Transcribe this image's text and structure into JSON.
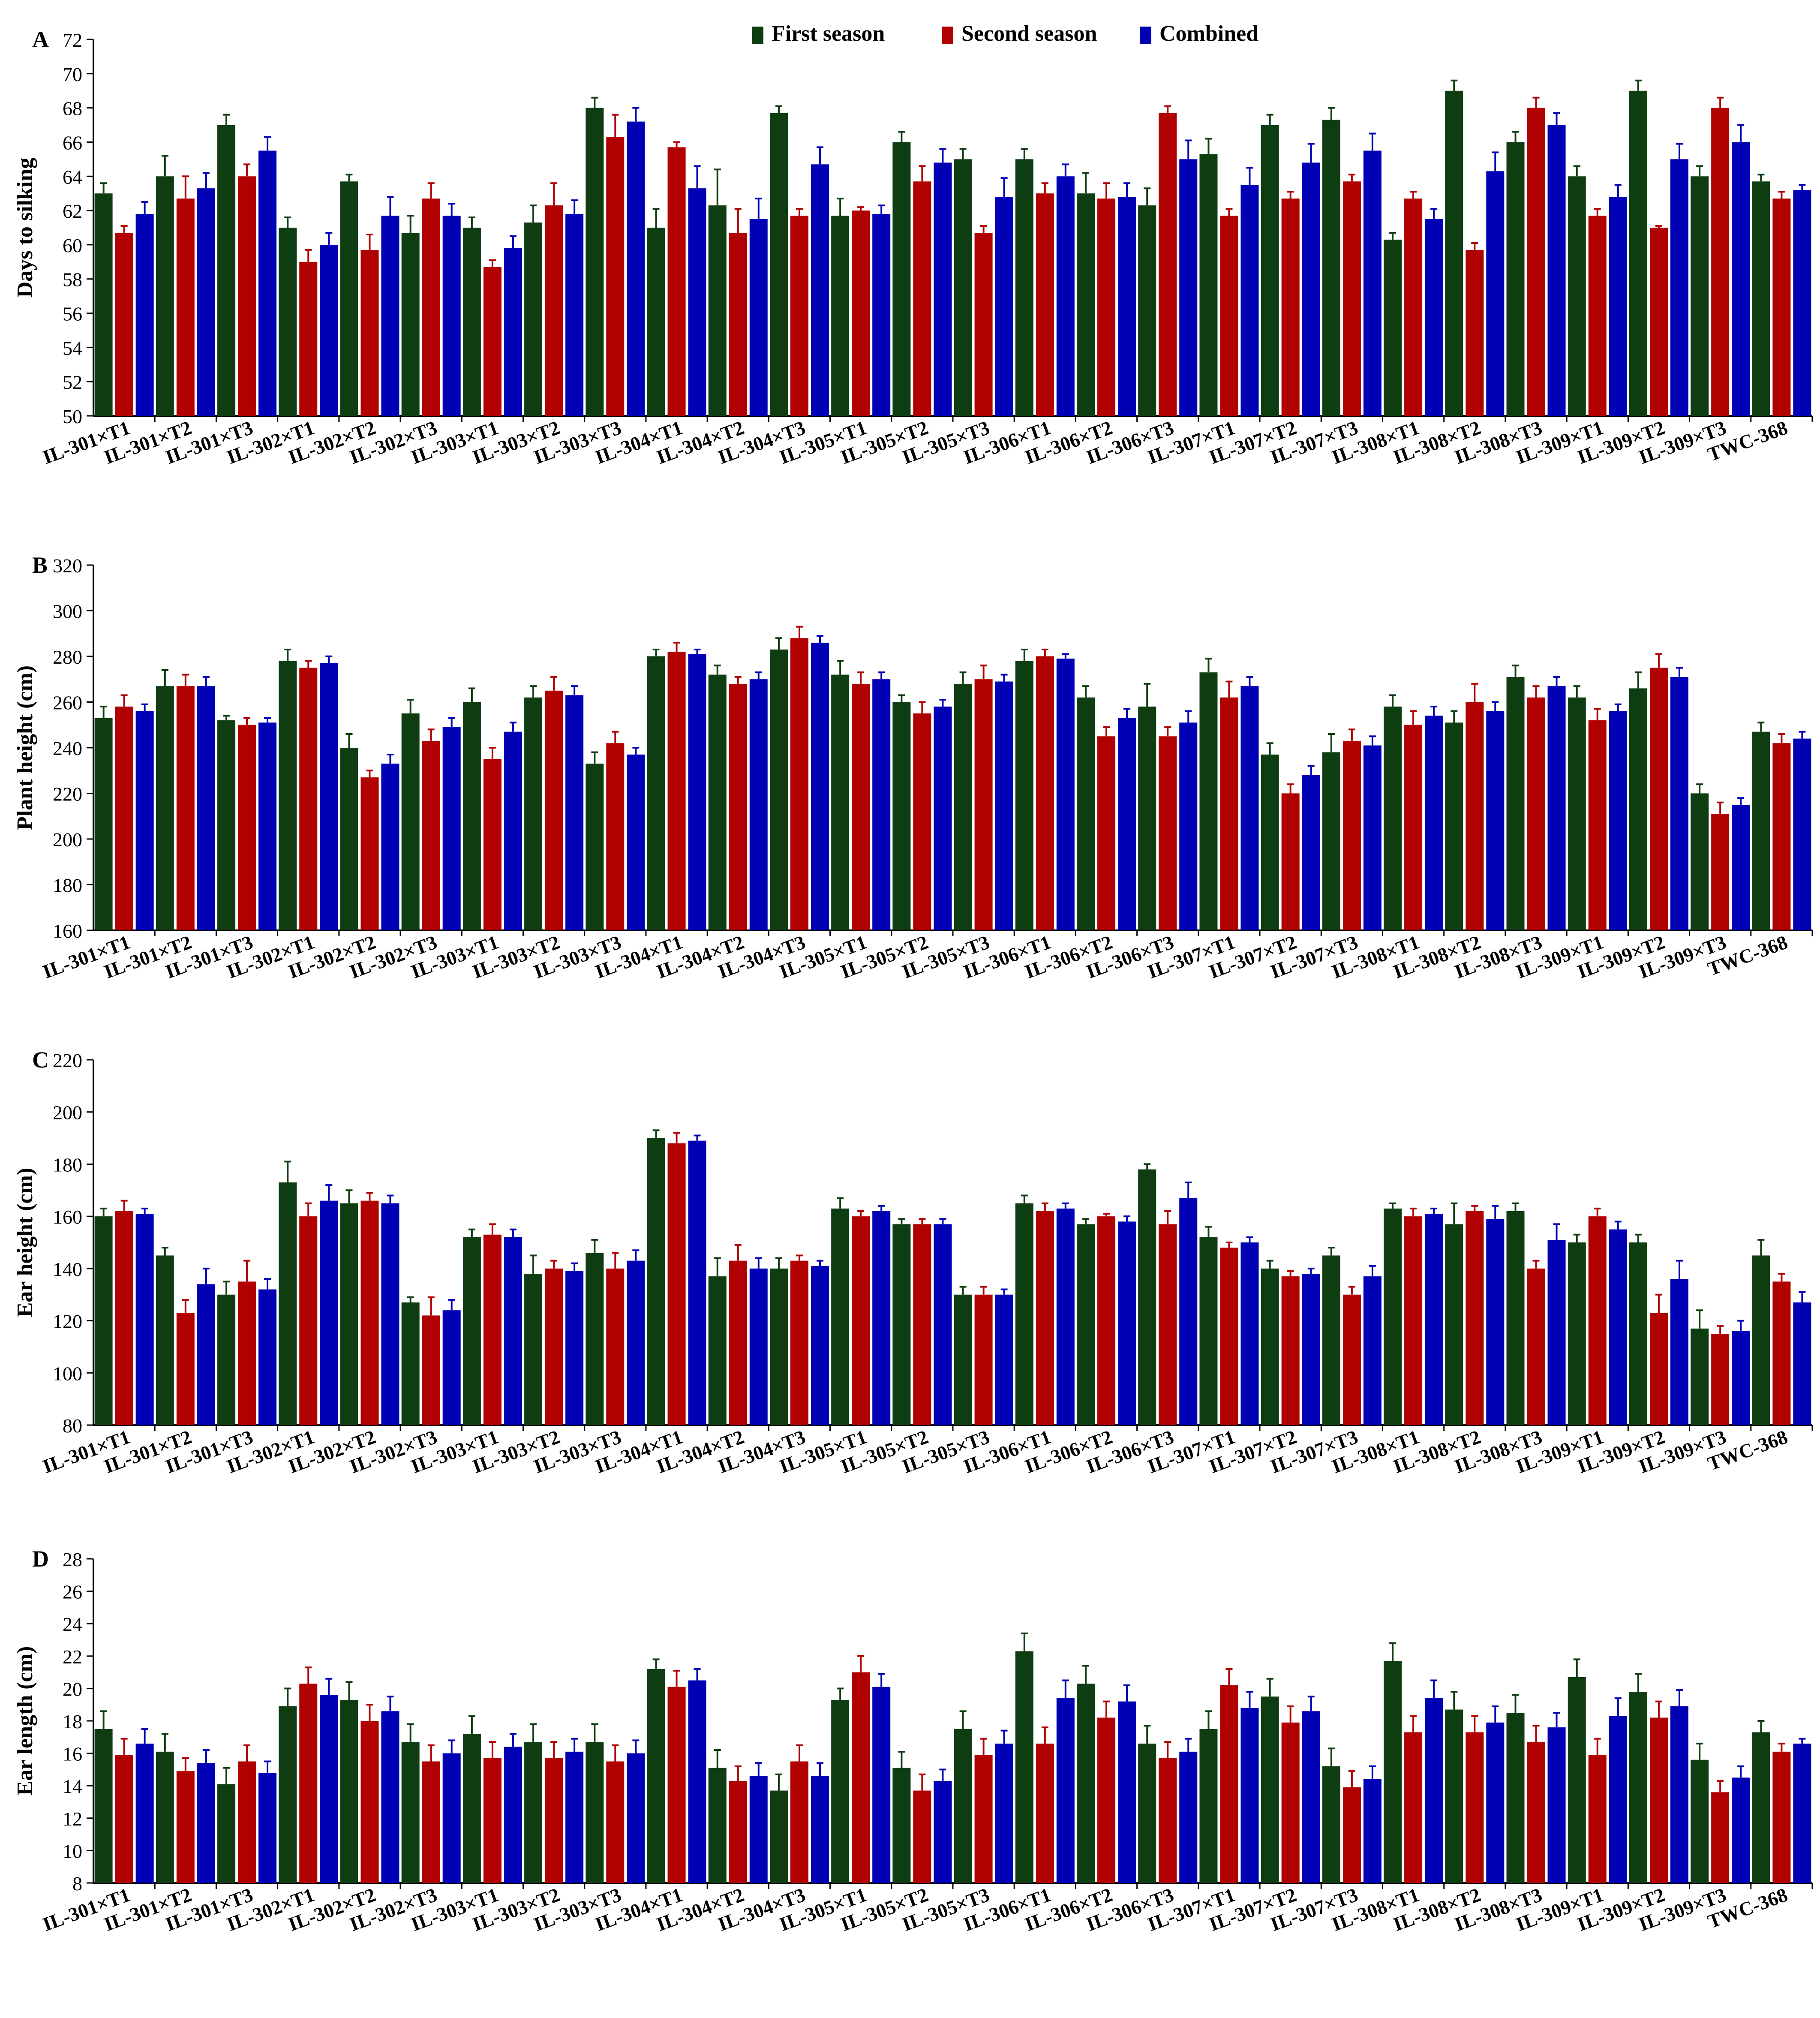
{
  "legend": {
    "items": [
      {
        "label": "First season",
        "color": "#0f3d12"
      },
      {
        "label": "Second season",
        "color": "#b00000"
      },
      {
        "label": "Combined",
        "color": "#0000b5"
      }
    ]
  },
  "chart_data": [
    {
      "type": "bar",
      "panel_label": "A",
      "ylabel": "Days to silking",
      "ylim": [
        50,
        72
      ],
      "yticks": [
        "50",
        "52",
        "54",
        "56",
        "58",
        "60",
        "62",
        "64",
        "66",
        "68",
        "70",
        "72"
      ],
      "categories": [
        "IL-301×T1",
        "IL-301×T2",
        "IL-301×T3",
        "IL-302×T1",
        "IL-302×T2",
        "IL-302×T3",
        "IL-303×T1",
        "IL-303×T2",
        "IL-303×T3",
        "IL-304×T1",
        "IL-304×T2",
        "IL-304×T3",
        "IL-305×T1",
        "IL-305×T2",
        "IL-305×T3",
        "IL-306×T1",
        "IL-306×T2",
        "IL-306×T3",
        "IL-307×T1",
        "IL-307×T2",
        "IL-307×T3",
        "IL-308×T1",
        "IL-308×T2",
        "IL-308×T3",
        "IL-309×T1",
        "IL-309×T2",
        "IL-309×T3",
        "TWC-368"
      ],
      "series": [
        {
          "name": "First season",
          "values": [
            63,
            64,
            67,
            61,
            63.7,
            60.7,
            61,
            61.3,
            68,
            61,
            62.3,
            67.7,
            61.7,
            66,
            65,
            65,
            63,
            62.3,
            65.3,
            67,
            67.3,
            60.3,
            69,
            66,
            64,
            69,
            64,
            63.7
          ],
          "errors": [
            0.6,
            1.2,
            0.6,
            0.6,
            0.4,
            1,
            0.6,
            1,
            0.6,
            1.1,
            2.1,
            0.4,
            1,
            0.6,
            0.6,
            0.6,
            1.2,
            1,
            0.9,
            0.6,
            0.7,
            0.4,
            0.6,
            0.6,
            0.6,
            0.6,
            0.6,
            0.4
          ]
        },
        {
          "name": "Second season",
          "values": [
            60.7,
            62.7,
            64,
            59,
            59.7,
            62.7,
            58.7,
            62.3,
            66.3,
            65.7,
            60.7,
            61.7,
            62,
            63.7,
            60.7,
            63,
            62.7,
            67.7,
            61.7,
            62.7,
            63.7,
            62.7,
            59.7,
            68,
            61.7,
            61,
            68,
            62.7
          ],
          "errors": [
            0.4,
            1.3,
            0.7,
            0.7,
            0.9,
            0.9,
            0.4,
            1.3,
            1.3,
            0.3,
            1.4,
            0.4,
            0.2,
            0.9,
            0.4,
            0.6,
            0.9,
            0.4,
            0.4,
            0.4,
            0.4,
            0.4,
            0.4,
            0.6,
            0.4,
            0.1,
            0.6,
            0.4
          ]
        },
        {
          "name": "Combined",
          "values": [
            61.8,
            63.3,
            65.5,
            60,
            61.7,
            61.7,
            59.8,
            61.8,
            67.2,
            63.3,
            61.5,
            64.7,
            61.8,
            64.8,
            62.8,
            64,
            62.8,
            65,
            63.5,
            64.8,
            65.5,
            61.5,
            64.3,
            67,
            62.8,
            65,
            66,
            63.2
          ],
          "errors": [
            0.7,
            0.9,
            0.8,
            0.7,
            1.1,
            0.7,
            0.7,
            0.8,
            0.8,
            1.3,
            1.2,
            1,
            0.5,
            0.8,
            1.1,
            0.7,
            0.8,
            1.1,
            1,
            1.1,
            1,
            0.6,
            1.1,
            0.7,
            0.7,
            0.9,
            1,
            0.3
          ]
        }
      ]
    },
    {
      "type": "bar",
      "panel_label": "B",
      "ylabel": "Plant height (cm)",
      "ylim": [
        160,
        320
      ],
      "yticks": [
        "160",
        "180",
        "200",
        "220",
        "240",
        "260",
        "280",
        "300",
        "320"
      ],
      "categories": [
        "IL-301×T1",
        "IL-301×T2",
        "IL-301×T3",
        "IL-302×T1",
        "IL-302×T2",
        "IL-302×T3",
        "IL-303×T1",
        "IL-303×T2",
        "IL-303×T3",
        "IL-304×T1",
        "IL-304×T2",
        "IL-304×T3",
        "IL-305×T1",
        "IL-305×T2",
        "IL-305×T3",
        "IL-306×T1",
        "IL-306×T2",
        "IL-306×T3",
        "IL-307×T1",
        "IL-307×T2",
        "IL-307×T3",
        "IL-308×T1",
        "IL-308×T2",
        "IL-308×T3",
        "IL-309×T1",
        "IL-309×T2",
        "IL-309×T3",
        "TWC-368"
      ],
      "series": [
        {
          "name": "First season",
          "values": [
            253,
            267,
            252,
            278,
            240,
            255,
            260,
            262,
            233,
            280,
            272,
            283,
            272,
            260,
            268,
            278,
            262,
            258,
            273,
            237,
            238,
            258,
            251,
            271,
            262,
            266,
            220,
            247
          ],
          "errors": [
            5,
            7,
            2,
            5,
            6,
            6,
            6,
            5,
            5,
            3,
            4,
            5,
            6,
            3,
            5,
            5,
            5,
            10,
            6,
            5,
            8,
            5,
            5,
            5,
            5,
            7,
            4,
            4
          ]
        },
        {
          "name": "Second season",
          "values": [
            258,
            267,
            250,
            275,
            227,
            243,
            235,
            265,
            242,
            282,
            268,
            288,
            268,
            255,
            270,
            280,
            245,
            245,
            262,
            220,
            243,
            250,
            260,
            262,
            252,
            275,
            211,
            242
          ],
          "errors": [
            5,
            5,
            3,
            3,
            3,
            5,
            5,
            6,
            5,
            4,
            3,
            5,
            5,
            5,
            6,
            3,
            4,
            4,
            7,
            4,
            5,
            6,
            8,
            5,
            5,
            6,
            5,
            4
          ]
        },
        {
          "name": "Combined",
          "values": [
            256,
            267,
            251,
            277,
            233,
            249,
            247,
            263,
            237,
            281,
            270,
            286,
            270,
            258,
            269,
            279,
            253,
            251,
            267,
            228,
            241,
            254,
            256,
            267,
            256,
            271,
            215,
            244
          ],
          "errors": [
            3,
            4,
            2,
            3,
            4,
            4,
            4,
            4,
            3,
            2,
            3,
            3,
            3,
            3,
            3,
            2,
            4,
            5,
            4,
            4,
            4,
            4,
            4,
            4,
            3,
            4,
            3,
            3
          ]
        }
      ]
    },
    {
      "type": "bar",
      "panel_label": "C",
      "ylabel": "Ear height (cm)",
      "ylim": [
        80,
        220
      ],
      "yticks": [
        "80",
        "100",
        "120",
        "140",
        "160",
        "180",
        "200",
        "220"
      ],
      "categories": [
        "IL-301×T1",
        "IL-301×T2",
        "IL-301×T3",
        "IL-302×T1",
        "IL-302×T2",
        "IL-302×T3",
        "IL-303×T1",
        "IL-303×T2",
        "IL-303×T3",
        "IL-304×T1",
        "IL-304×T2",
        "IL-304×T3",
        "IL-305×T1",
        "IL-305×T2",
        "IL-305×T3",
        "IL-306×T1",
        "IL-306×T2",
        "IL-306×T3",
        "IL-307×T1",
        "IL-307×T2",
        "IL-307×T3",
        "IL-308×T1",
        "IL-308×T2",
        "IL-308×T3",
        "IL-309×T1",
        "IL-309×T2",
        "IL-309×T3",
        "TWC-368"
      ],
      "series": [
        {
          "name": "First season",
          "values": [
            160,
            145,
            130,
            173,
            165,
            127,
            152,
            138,
            146,
            190,
            137,
            140,
            163,
            157,
            130,
            165,
            157,
            178,
            152,
            140,
            145,
            163,
            157,
            162,
            150,
            150,
            117,
            145
          ],
          "errors": [
            3,
            3,
            5,
            8,
            5,
            2,
            3,
            7,
            5,
            3,
            7,
            4,
            4,
            2,
            3,
            3,
            2,
            2,
            4,
            3,
            3,
            2,
            8,
            3,
            3,
            3,
            7,
            6
          ]
        },
        {
          "name": "Second season",
          "values": [
            162,
            123,
            135,
            160,
            166,
            122,
            153,
            140,
            140,
            188,
            143,
            143,
            160,
            157,
            130,
            162,
            160,
            157,
            148,
            137,
            130,
            160,
            162,
            140,
            160,
            123,
            115,
            135
          ],
          "errors": [
            4,
            5,
            8,
            5,
            3,
            7,
            4,
            3,
            6,
            4,
            6,
            2,
            2,
            2,
            3,
            3,
            1,
            5,
            2,
            2,
            3,
            3,
            2,
            3,
            3,
            7,
            3,
            3
          ]
        },
        {
          "name": "Combined",
          "values": [
            161,
            134,
            132,
            166,
            165,
            124,
            152,
            139,
            143,
            189,
            140,
            141,
            162,
            157,
            130,
            163,
            158,
            167,
            150,
            138,
            137,
            161,
            159,
            151,
            155,
            136,
            116,
            127
          ],
          "errors": [
            2,
            6,
            4,
            6,
            3,
            4,
            3,
            3,
            4,
            2,
            4,
            2,
            2,
            2,
            2,
            2,
            2,
            6,
            2,
            2,
            4,
            2,
            5,
            6,
            3,
            7,
            4,
            4
          ]
        }
      ]
    },
    {
      "type": "bar",
      "panel_label": "D",
      "ylabel": "Ear length (cm)",
      "ylim": [
        8,
        28
      ],
      "yticks": [
        "8",
        "10",
        "12",
        "14",
        "16",
        "18",
        "20",
        "22",
        "24",
        "26",
        "28"
      ],
      "categories": [
        "IL-301×T1",
        "IL-301×T2",
        "IL-301×T3",
        "IL-302×T1",
        "IL-302×T2",
        "IL-302×T3",
        "IL-303×T1",
        "IL-303×T2",
        "IL-303×T3",
        "IL-304×T1",
        "IL-304×T2",
        "IL-304×T3",
        "IL-305×T1",
        "IL-305×T2",
        "IL-305×T3",
        "IL-306×T1",
        "IL-306×T2",
        "IL-306×T3",
        "IL-307×T1",
        "IL-307×T2",
        "IL-307×T3",
        "IL-308×T1",
        "IL-308×T2",
        "IL-308×T3",
        "IL-309×T1",
        "IL-309×T2",
        "IL-309×T3",
        "TWC-368"
      ],
      "series": [
        {
          "name": "First season",
          "values": [
            17.5,
            16.1,
            14.1,
            18.9,
            19.3,
            16.7,
            17.2,
            16.7,
            16.7,
            21.2,
            15.1,
            13.7,
            19.3,
            15.1,
            17.5,
            22.3,
            20.3,
            16.6,
            17.5,
            19.5,
            15.2,
            21.7,
            18.7,
            18.5,
            20.7,
            19.8,
            15.6,
            17.3
          ],
          "errors": [
            1.1,
            1.1,
            1,
            1.1,
            1.1,
            1.1,
            1.1,
            1.1,
            1.1,
            0.6,
            1.1,
            1,
            0.7,
            1,
            1.1,
            1.1,
            1.1,
            1.1,
            1.1,
            1.1,
            1.1,
            1.1,
            1.1,
            1.1,
            1.1,
            1.1,
            1,
            0.7
          ]
        },
        {
          "name": "Second season",
          "values": [
            15.9,
            14.9,
            15.5,
            20.3,
            18,
            15.5,
            15.7,
            15.7,
            15.5,
            20.1,
            14.3,
            15.5,
            21,
            13.7,
            15.9,
            16.6,
            18.2,
            15.7,
            20.2,
            17.9,
            13.9,
            17.3,
            17.3,
            16.7,
            15.9,
            18.2,
            13.6,
            16.1
          ],
          "errors": [
            1,
            0.8,
            1,
            1,
            1,
            1,
            1,
            1,
            1,
            1,
            0.9,
            1,
            1,
            1,
            1,
            1,
            1,
            1,
            1,
            1,
            1,
            1,
            1,
            1,
            1,
            1,
            0.7,
            0.5
          ]
        },
        {
          "name": "Combined",
          "values": [
            16.6,
            15.4,
            14.8,
            19.6,
            18.6,
            16,
            16.4,
            16.1,
            16,
            20.5,
            14.6,
            14.6,
            20.1,
            14.3,
            16.6,
            19.4,
            19.2,
            16.1,
            18.8,
            18.6,
            14.4,
            19.4,
            17.9,
            17.6,
            18.3,
            18.9,
            14.5,
            16.6
          ],
          "errors": [
            0.9,
            0.8,
            0.7,
            1,
            0.9,
            0.8,
            0.8,
            0.8,
            0.8,
            0.7,
            0.8,
            0.8,
            0.8,
            0.7,
            0.8,
            1.1,
            1,
            0.8,
            1,
            0.9,
            0.8,
            1.1,
            1,
            0.9,
            1.1,
            1,
            0.7,
            0.3
          ]
        }
      ]
    }
  ]
}
